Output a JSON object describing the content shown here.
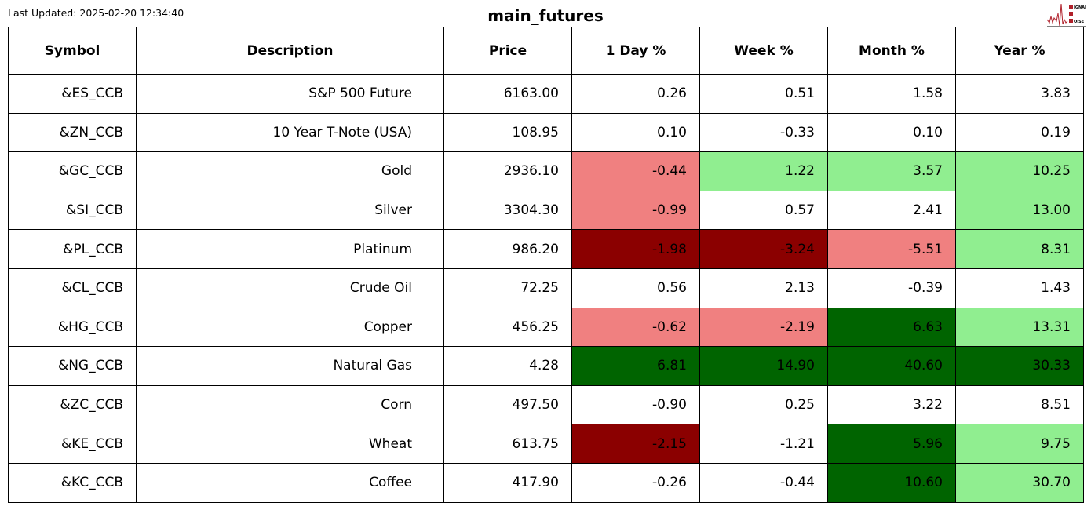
{
  "header": {
    "last_updated": "Last Updated: 2025-02-20 12:34:40",
    "title": "main_futures",
    "logo_text": "SIGNAL 2 NOISE"
  },
  "colors": {
    "lightcoral": "#f08080",
    "lightgreen": "#90ee90",
    "darkred": "#8b0000",
    "darkgreen": "#006400",
    "white": "#ffffff"
  },
  "chart_data": {
    "type": "table",
    "title": "main_futures",
    "columns": [
      "Symbol",
      "Description",
      "Price",
      "1 Day %",
      "Week %",
      "Month %",
      "Year %"
    ],
    "rows": [
      {
        "cells": [
          "&ES_CCB",
          "S&P 500 Future",
          "6163.00",
          "0.26",
          "0.51",
          "1.58",
          "3.83"
        ],
        "colors": [
          "white",
          "white",
          "white",
          "white"
        ]
      },
      {
        "cells": [
          "&ZN_CCB",
          "10 Year T-Note (USA)",
          "108.95",
          "0.10",
          "-0.33",
          "0.10",
          "0.19"
        ],
        "colors": [
          "white",
          "white",
          "white",
          "white"
        ]
      },
      {
        "cells": [
          "&GC_CCB",
          "Gold",
          "2936.10",
          "-0.44",
          "1.22",
          "3.57",
          "10.25"
        ],
        "colors": [
          "lightcoral",
          "lightgreen",
          "lightgreen",
          "lightgreen"
        ]
      },
      {
        "cells": [
          "&SI_CCB",
          "Silver",
          "3304.30",
          "-0.99",
          "0.57",
          "2.41",
          "13.00"
        ],
        "colors": [
          "lightcoral",
          "white",
          "white",
          "lightgreen"
        ]
      },
      {
        "cells": [
          "&PL_CCB",
          "Platinum",
          "986.20",
          "-1.98",
          "-3.24",
          "-5.51",
          "8.31"
        ],
        "colors": [
          "darkred",
          "darkred",
          "lightcoral",
          "lightgreen"
        ]
      },
      {
        "cells": [
          "&CL_CCB",
          "Crude Oil",
          "72.25",
          "0.56",
          "2.13",
          "-0.39",
          "1.43"
        ],
        "colors": [
          "white",
          "white",
          "white",
          "white"
        ]
      },
      {
        "cells": [
          "&HG_CCB",
          "Copper",
          "456.25",
          "-0.62",
          "-2.19",
          "6.63",
          "13.31"
        ],
        "colors": [
          "lightcoral",
          "lightcoral",
          "darkgreen",
          "lightgreen"
        ]
      },
      {
        "cells": [
          "&NG_CCB",
          "Natural Gas",
          "4.28",
          "6.81",
          "14.90",
          "40.60",
          "30.33"
        ],
        "colors": [
          "darkgreen",
          "darkgreen",
          "darkgreen",
          "darkgreen"
        ]
      },
      {
        "cells": [
          "&ZC_CCB",
          "Corn",
          "497.50",
          "-0.90",
          "0.25",
          "3.22",
          "8.51"
        ],
        "colors": [
          "white",
          "white",
          "white",
          "white"
        ]
      },
      {
        "cells": [
          "&KE_CCB",
          "Wheat",
          "613.75",
          "-2.15",
          "-1.21",
          "5.96",
          "9.75"
        ],
        "colors": [
          "darkred",
          "white",
          "darkgreen",
          "lightgreen"
        ]
      },
      {
        "cells": [
          "&KC_CCB",
          "Coffee",
          "417.90",
          "-0.26",
          "-0.44",
          "10.60",
          "30.70"
        ],
        "colors": [
          "white",
          "white",
          "darkgreen",
          "lightgreen"
        ]
      }
    ]
  }
}
